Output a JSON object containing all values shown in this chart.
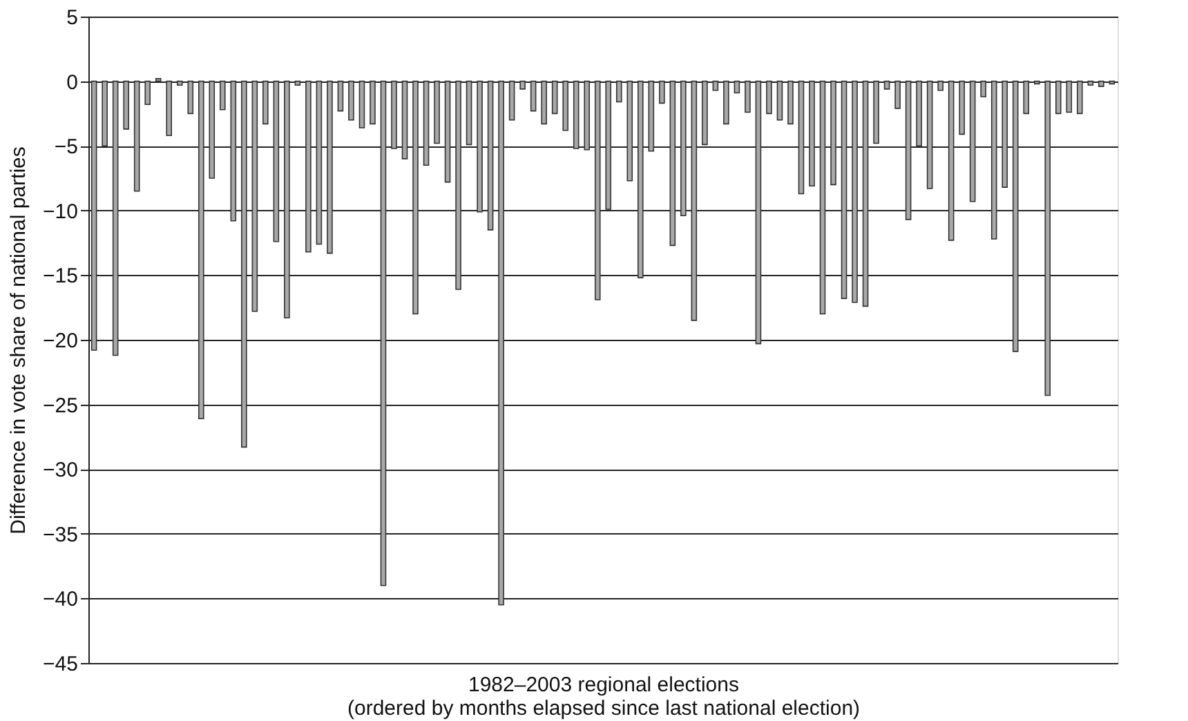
{
  "chart_data": {
    "type": "bar",
    "xlabel": "1982–2003 regional elections\n(ordered by months elapsed since last national election)",
    "ylabel": "Difference in vote share of national parties",
    "categories": [
      null,
      null,
      null,
      null,
      null,
      null,
      null,
      null,
      null,
      null,
      null,
      null,
      null,
      null,
      null,
      null,
      null,
      null,
      null,
      null,
      null,
      null,
      null,
      null,
      null,
      null,
      null,
      null,
      null,
      null,
      null,
      null,
      null,
      null,
      null,
      null,
      null,
      null,
      null,
      null,
      null,
      null,
      null,
      null,
      null,
      null,
      null,
      null,
      null,
      null,
      null,
      null,
      null,
      null,
      null,
      null,
      null,
      null,
      null,
      null,
      null,
      null,
      null,
      null,
      null,
      null,
      null,
      null,
      null,
      null,
      null,
      null,
      null,
      null,
      null,
      null,
      null,
      null,
      null,
      null,
      null,
      null,
      null,
      null,
      null,
      null,
      null,
      null,
      null,
      null,
      null,
      null,
      null,
      null,
      null,
      null
    ],
    "values": [
      -20.8,
      -5,
      -21.2,
      -3.7,
      -8.5,
      -1.8,
      0.2,
      -4.2,
      -0.3,
      -2.5,
      -26.1,
      -7.5,
      -2.2,
      -10.8,
      -28.3,
      -17.8,
      -3.3,
      -12.4,
      -18.3,
      -0.3,
      -13.2,
      -12.6,
      -13.3,
      -2.3,
      -3,
      -3.6,
      -3.3,
      -39,
      -5.2,
      -6,
      -18,
      -6.5,
      -4.8,
      -7.8,
      -16.1,
      -4.9,
      -10.1,
      -11.5,
      -40.5,
      -3,
      -0.6,
      -2.3,
      -3.3,
      -2.5,
      -3.8,
      -5.2,
      -5.3,
      -16.9,
      -9.9,
      -1.6,
      -7.7,
      -15.2,
      -5.4,
      -1.7,
      -12.7,
      -10.4,
      -18.5,
      -4.9,
      -0.7,
      -3.3,
      -0.9,
      -2.4,
      -20.3,
      -2.5,
      -3,
      -3.3,
      -8.7,
      -8.1,
      -18,
      -8,
      -16.8,
      -17.1,
      -17.4,
      -4.8,
      -0.6,
      -2.1,
      -10.7,
      -5,
      -8.3,
      -0.7,
      -12.3,
      -4.1,
      -9.3,
      -1.2,
      -12.2,
      -8.2,
      -20.9,
      -2.5,
      -0.2,
      -24.3,
      -2.5,
      -2.4,
      -2.5,
      -0.3,
      -0.4,
      -0.2
    ],
    "color": "#a8a8a8",
    "ylim": [
      -45,
      5
    ],
    "yticks": [
      -45,
      -40,
      -35,
      -30,
      -25,
      -20,
      -15,
      -10,
      -5,
      0,
      5
    ],
    "grid": "y",
    "tick_labels": "y"
  }
}
